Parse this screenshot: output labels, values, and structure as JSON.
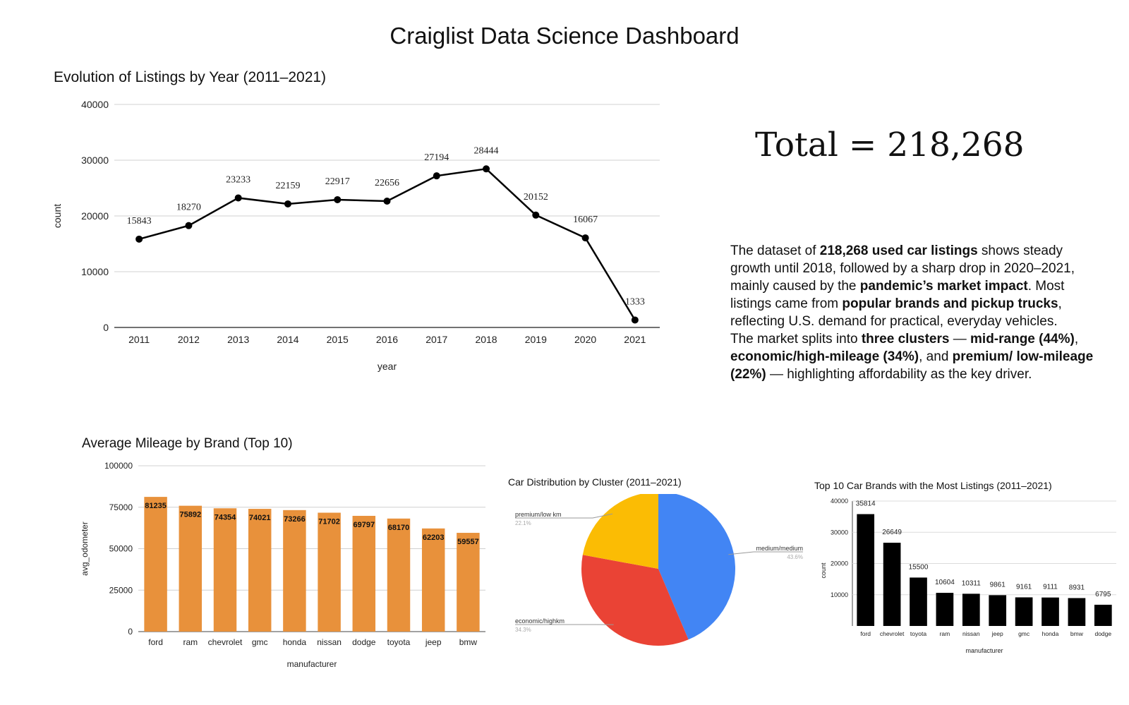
{
  "dashboard": {
    "title": "Craiglist Data Science Dashboard"
  },
  "total": {
    "label": "Total = 218,268"
  },
  "summary": {
    "s1": "The dataset of ",
    "b1": "218,268 used car listings",
    "s2": " shows steady growth until 2018, followed by a sharp drop in 2020–2021, mainly caused by the ",
    "b2": "pandemic’s market impact",
    "s3": ". Most listings came from ",
    "b3": "popular brands and pickup trucks",
    "s4": ", reflecting U.S. demand for practical, everyday vehicles.",
    "s5": "The market splits into ",
    "b4": "three clusters",
    "s6": " — ",
    "b5": "mid-range (44%)",
    "s7": ", ",
    "b6": "economic/high-mileage (34%)",
    "s8": ", and ",
    "b7": "premium/ low-mileage (22%)",
    "s9": " — highlighting affordability as the key driver."
  },
  "chart_data": [
    {
      "type": "line",
      "title": "Evolution of Listings by Year (2011–2021)",
      "xlabel": "year",
      "ylabel": "count",
      "x": [
        "2011",
        "2012",
        "2013",
        "2014",
        "2015",
        "2016",
        "2017",
        "2018",
        "2019",
        "2020",
        "2021"
      ],
      "values": [
        15843,
        18270,
        23233,
        22159,
        22917,
        22656,
        27194,
        28444,
        20152,
        16067,
        1333
      ],
      "ylim": [
        0,
        40000
      ],
      "yticks": [
        0,
        10000,
        20000,
        30000,
        40000
      ],
      "grid": true,
      "color": "#000000"
    },
    {
      "type": "bar",
      "title": "Average Mileage by Brand (Top 10)",
      "xlabel": "manufacturer",
      "ylabel": "avg_odometer",
      "categories": [
        "ford",
        "ram",
        "chevrolet",
        "gmc",
        "honda",
        "nissan",
        "dodge",
        "toyota",
        "jeep",
        "bmw"
      ],
      "values": [
        81235,
        75892,
        74354,
        74021,
        73266,
        71702,
        69797,
        68170,
        62203,
        59557
      ],
      "ylim": [
        0,
        100000
      ],
      "yticks": [
        0,
        25000,
        50000,
        75000,
        100000
      ],
      "grid": true,
      "color": "#e8913b"
    },
    {
      "type": "pie",
      "title": "Car Distribution by Cluster (2011–2021)",
      "slices": [
        {
          "label": "medium/medium",
          "percent": "43.6%",
          "value": 43.6,
          "color": "#4285f4"
        },
        {
          "label": "economic/highkm",
          "percent": "34.3%",
          "value": 34.3,
          "color": "#ea4335"
        },
        {
          "label": "premium/low km",
          "percent": "22.1%",
          "value": 22.1,
          "color": "#fbbc04"
        }
      ]
    },
    {
      "type": "bar",
      "title": "Top 10 Car Brands with the Most Listings (2011–2021)",
      "xlabel": "manufacturer",
      "ylabel": "count",
      "categories": [
        "ford",
        "chevrolet",
        "toyota",
        "ram",
        "nissan",
        "jeep",
        "gmc",
        "honda",
        "bmw",
        "dodge"
      ],
      "values": [
        35814,
        26649,
        15500,
        10604,
        10311,
        9861,
        9161,
        9111,
        8931,
        6795
      ],
      "ylim": [
        0,
        40000
      ],
      "yticks": [
        10000,
        20000,
        30000,
        40000
      ],
      "grid": true,
      "color": "#000000"
    }
  ]
}
